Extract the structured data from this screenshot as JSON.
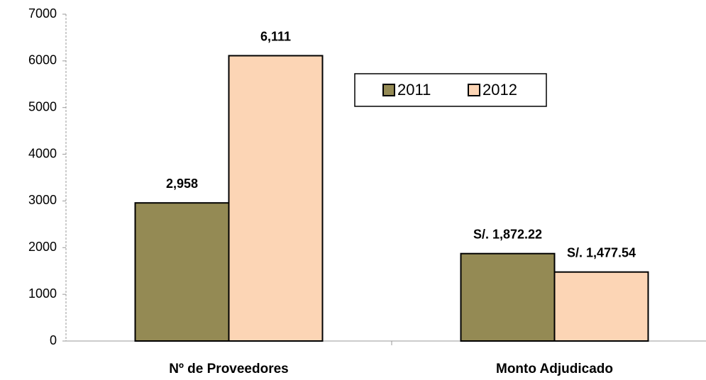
{
  "chart_data": {
    "type": "bar",
    "categories": [
      "Nº de Proveedores",
      "Monto Adjudicado"
    ],
    "series": [
      {
        "name": "2011",
        "color": "#948a54",
        "values": [
          2958,
          1872.22
        ],
        "value_labels": [
          "2,958",
          "S/. 1,872.22"
        ]
      },
      {
        "name": "2012",
        "color": "#fcd5b5",
        "values": [
          6111,
          1477.54
        ],
        "value_labels": [
          "6,111",
          "S/. 1,477.54"
        ]
      }
    ],
    "ylim": [
      0,
      7000
    ],
    "yticks": [
      0,
      1000,
      2000,
      3000,
      4000,
      5000,
      6000,
      7000
    ],
    "grid": false
  }
}
